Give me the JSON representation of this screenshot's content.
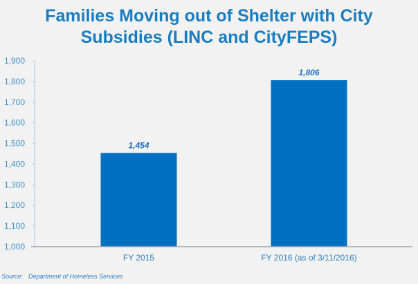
{
  "chart_data": {
    "type": "bar",
    "title": "Families Moving out of Shelter with City Subsidies (LINC and CityFEPS)",
    "title_lines": [
      "Families Moving out of Shelter with City",
      "Subsidies (LINC and CityFEPS)"
    ],
    "categories": [
      "FY 2015",
      "FY 2016 (as of 3/11/2016)"
    ],
    "values": [
      1454,
      1806
    ],
    "data_labels": [
      "1,454",
      "1,806"
    ],
    "xlabel": "",
    "ylabel": "",
    "ylim": [
      1000,
      1900
    ],
    "yticks": [
      1000,
      1100,
      1200,
      1300,
      1400,
      1500,
      1600,
      1700,
      1800,
      1900
    ],
    "ytick_labels": [
      "1,000",
      "1,100",
      "1,200",
      "1,300",
      "1,400",
      "1,500",
      "1,600",
      "1,700",
      "1,800",
      "1,900"
    ],
    "grid": false,
    "legend": "none",
    "bar_color": "#0070c0"
  },
  "source": {
    "label": "Source:",
    "text": "Department of Homeless Services"
  }
}
